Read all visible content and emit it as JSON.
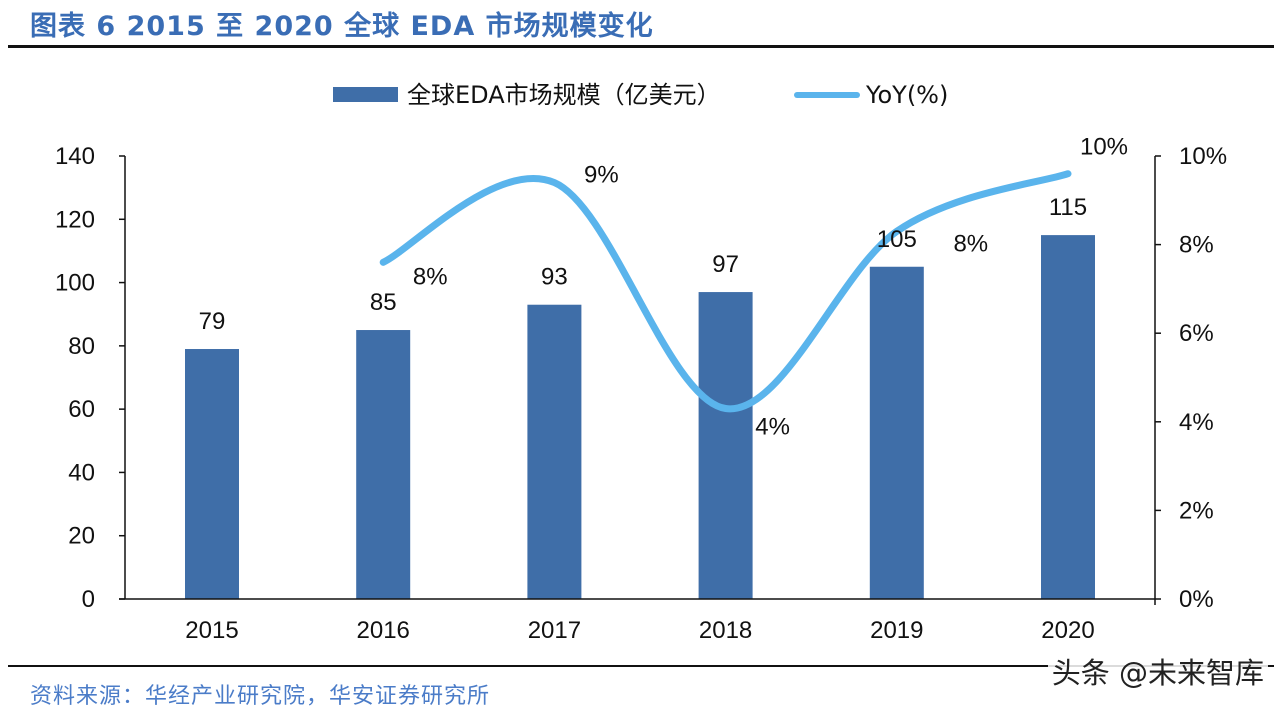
{
  "header": {
    "title": "图表 6 2015 至 2020 全球 EDA 市场规模变化"
  },
  "footer": {
    "source": "资料来源：华经产业研究院，华安证券研究所",
    "watermark": "头条 @未来智库"
  },
  "colors": {
    "bar": "#3f6ea8",
    "line": "#5ab4ec",
    "axis": "#111111",
    "title": "#3a6db5",
    "source": "#4b7cc8"
  },
  "chart_data": {
    "type": "bar",
    "title": "2015 至 2020 全球 EDA 市场规模变化",
    "xlabel": "",
    "ylabel": "",
    "categories": [
      "2015",
      "2016",
      "2017",
      "2018",
      "2019",
      "2020"
    ],
    "series": [
      {
        "name": "全球EDA市场规模（亿美元）",
        "type": "bar",
        "axis": "left",
        "values": [
          79,
          85,
          93,
          97,
          105,
          115
        ],
        "labels": [
          "79",
          "85",
          "93",
          "97",
          "105",
          "115"
        ]
      },
      {
        "name": "YoY(%)",
        "type": "line",
        "axis": "right",
        "smooth": true,
        "values": [
          null,
          7.6,
          9.4,
          4.3,
          8.3,
          9.6
        ],
        "labels": [
          null,
          "8%",
          "9%",
          "4%",
          "8%",
          "10%"
        ]
      }
    ],
    "left_axis": {
      "ylim": [
        0,
        140
      ],
      "ticks": [
        0,
        20,
        40,
        60,
        80,
        100,
        120,
        140
      ],
      "tick_labels": [
        "0",
        "20",
        "40",
        "60",
        "80",
        "100",
        "120",
        "140"
      ]
    },
    "right_axis": {
      "ylim": [
        0,
        10
      ],
      "ticks": [
        0,
        2,
        4,
        6,
        8,
        10
      ],
      "tick_labels": [
        "0%",
        "2%",
        "4%",
        "6%",
        "8%",
        "10%"
      ]
    },
    "legend": {
      "position": "top-center",
      "entries": [
        "全球EDA市场规模（亿美元）",
        "YoY(%)"
      ]
    },
    "grid": false
  }
}
